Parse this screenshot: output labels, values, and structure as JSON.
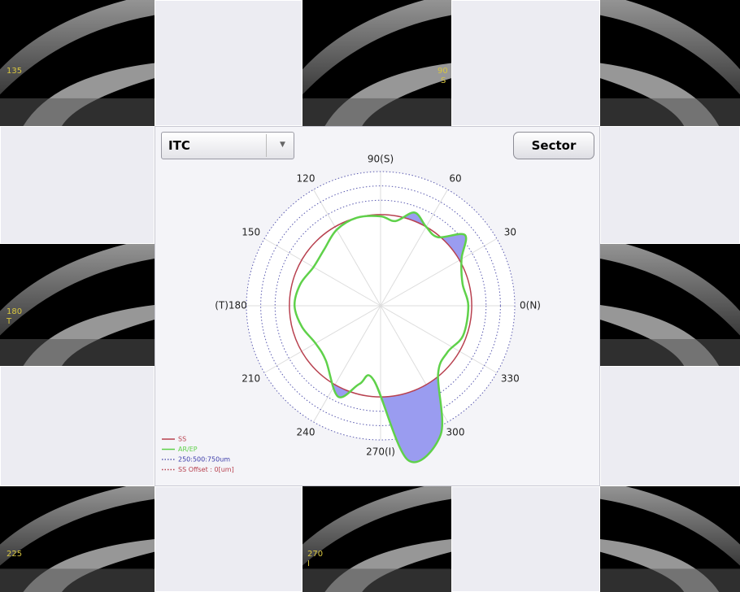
{
  "thumbnails": [
    {
      "lines": [
        "135"
      ]
    },
    {
      "lines": [
        "90",
        "S"
      ]
    },
    {
      "lines": [
        "180",
        "T"
      ]
    },
    {
      "lines": [
        "225"
      ]
    },
    {
      "lines": [
        "270",
        "I"
      ]
    }
  ],
  "toolbar": {
    "dropdown": "ITC",
    "button": "Sector"
  },
  "chart_data": {
    "type": "polar",
    "angle_labels": [
      {
        "value": 90,
        "label": "90(S)"
      },
      {
        "value": 60,
        "label": "60"
      },
      {
        "value": 30,
        "label": "30"
      },
      {
        "value": 0,
        "label": "0(N)"
      },
      {
        "value": 330,
        "label": "330"
      },
      {
        "value": 300,
        "label": "300"
      },
      {
        "value": 270,
        "label": "270(I)"
      },
      {
        "value": 240,
        "label": "240"
      },
      {
        "value": 210,
        "label": "210"
      },
      {
        "value": 180,
        "label": "(T)180"
      },
      {
        "value": 150,
        "label": "150"
      },
      {
        "value": 120,
        "label": "120"
      }
    ],
    "rlim": [
      -1590,
      750
    ],
    "rticks": [
      250,
      500,
      750
    ],
    "series": [
      {
        "name": "SS",
        "color": "#b8414f",
        "values": [
          0
        ]
      },
      {
        "name": "AR/EP",
        "color": "#5fd14a",
        "angles": [
          0,
          15,
          30,
          40,
          50,
          60,
          70,
          80,
          90,
          105,
          120,
          135,
          150,
          165,
          180,
          195,
          210,
          225,
          245,
          255,
          265,
          280,
          295,
          310,
          325,
          340
        ],
        "values": [
          -60,
          -110,
          40,
          330,
          -30,
          0,
          140,
          -90,
          -30,
          0,
          -60,
          -200,
          -240,
          -140,
          -90,
          -170,
          -280,
          -240,
          160,
          -180,
          -280,
          1140,
          890,
          -30,
          -170,
          -60
        ]
      }
    ],
    "legend": [
      "SS",
      "AR/EP",
      "250:500:750um",
      "SS Offset : 0[um]"
    ],
    "fill_color": "#9a9cf0"
  }
}
